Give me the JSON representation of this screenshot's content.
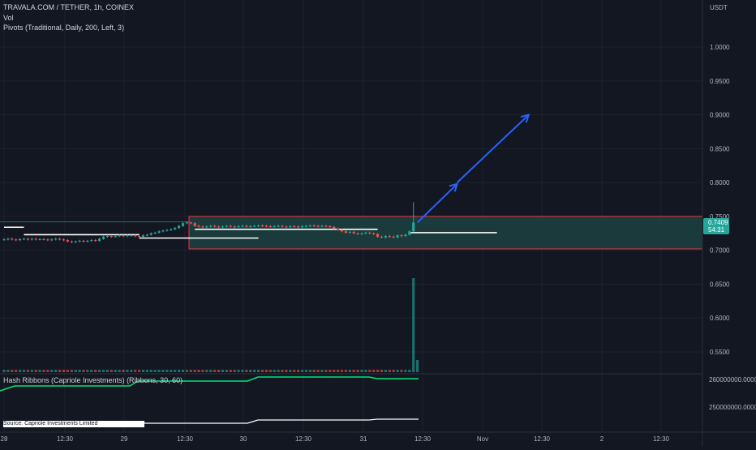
{
  "legend": {
    "symbol": "TRAVALA.COM / TETHER, 1h, COINEX",
    "vol": "Vol",
    "pivots": "Pivots (Traditional, Daily, 200, Left, 3)",
    "hash_ribbons": "Hash Ribbons (Capriole Investments) (Ribbons, 30, 60)",
    "source": "Source: Capriole Investments Limited"
  },
  "price_axis": {
    "currency": "USDT",
    "current_price": "0.7409",
    "countdown": "54:31"
  },
  "colors": {
    "background": "#131722",
    "bull": "#26a69a",
    "bear": "#ef5350",
    "box_border": "#f23645",
    "box_fill": "#1e4a46",
    "arrow": "#2962ff",
    "ribbon": "#00e676",
    "badge": "#26a69a"
  },
  "chart_data": {
    "type": "candlestick",
    "price_ticks": [
      "1.0000",
      "0.9500",
      "0.9000",
      "0.8500",
      "0.8000",
      "0.7500",
      "0.7000",
      "0.6500",
      "0.6000",
      "0.5500"
    ],
    "indicator_ticks": [
      "260000000.0000",
      "250000000.0000"
    ],
    "x_ticks": [
      "28",
      "12:30",
      "29",
      "12:30",
      "30",
      "12:30",
      "31",
      "12:30",
      "Nov",
      "12:30",
      "2",
      "12:30"
    ],
    "ylim": [
      0.53,
      1.05
    ],
    "range_box": {
      "from_index": 47,
      "to_index": 174,
      "top": 0.75,
      "bottom": 0.702
    },
    "arrow_segments": [
      {
        "from": [
          104,
          0.741
        ],
        "to": [
          114,
          0.798
        ]
      },
      {
        "from": [
          114,
          0.8
        ],
        "to": [
          132,
          0.9
        ]
      }
    ],
    "pivot_lines": [
      {
        "from_index": 0,
        "to_index": 5,
        "value": 0.734
      },
      {
        "from_index": 5,
        "to_index": 34,
        "value": 0.723
      },
      {
        "from_index": 34,
        "to_index": 64,
        "value": 0.718
      },
      {
        "from_index": 48,
        "to_index": 94,
        "value": 0.731
      },
      {
        "from_index": 102,
        "to_index": 124,
        "value": 0.726
      }
    ],
    "close": [
      0.716,
      0.717,
      0.716,
      0.715,
      0.7165,
      0.717,
      0.716,
      0.717,
      0.716,
      0.7165,
      0.716,
      0.715,
      0.716,
      0.717,
      0.716,
      0.715,
      0.713,
      0.712,
      0.713,
      0.714,
      0.713,
      0.714,
      0.715,
      0.714,
      0.717,
      0.72,
      0.721,
      0.72,
      0.721,
      0.722,
      0.721,
      0.722,
      0.722,
      0.721,
      0.72,
      0.722,
      0.723,
      0.725,
      0.726,
      0.728,
      0.729,
      0.73,
      0.731,
      0.733,
      0.736,
      0.74,
      0.741,
      0.74,
      0.736,
      0.735,
      0.734,
      0.735,
      0.736,
      0.735,
      0.734,
      0.735,
      0.736,
      0.735,
      0.7345,
      0.7355,
      0.736,
      0.735,
      0.7355,
      0.736,
      0.7365,
      0.736,
      0.7355,
      0.735,
      0.7355,
      0.736,
      0.735,
      0.7345,
      0.7355,
      0.735,
      0.7345,
      0.7355,
      0.736,
      0.7365,
      0.736,
      0.7355,
      0.736,
      0.7355,
      0.7345,
      0.732,
      0.73,
      0.728,
      0.726,
      0.727,
      0.725,
      0.724,
      0.725,
      0.726,
      0.725,
      0.724,
      0.72,
      0.719,
      0.721,
      0.72,
      0.719,
      0.722,
      0.721,
      0.723,
      0.728,
      0.7409
    ]
  }
}
